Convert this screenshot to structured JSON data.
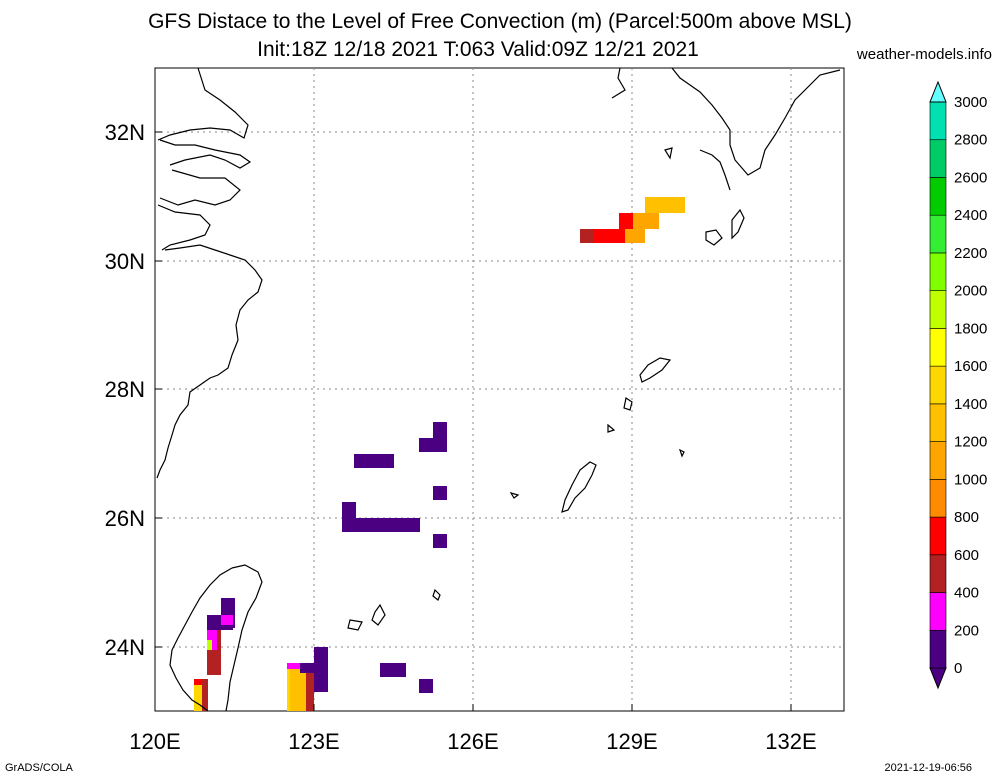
{
  "title_line1": "GFS Distace to the Level of Free Convection (m) (Parcel:500m above MSL)",
  "title_line2": "Init:18Z 12/18 2021 T:063 Valid:09Z 12/21 2021",
  "site": "weather-models.info",
  "footer_left": "GrADS/COLA",
  "footer_right": "2021-12-19-06:56",
  "map": {
    "lon_range": [
      120,
      133
    ],
    "lat_range": [
      23,
      33
    ],
    "lon_ticks": [
      "120E",
      "123E",
      "126E",
      "129E",
      "132E"
    ],
    "lat_ticks": [
      "24N",
      "26N",
      "28N",
      "30N",
      "32N"
    ],
    "grid": true,
    "units": "m"
  },
  "colorbar": {
    "labels": [
      "0",
      "200",
      "400",
      "600",
      "800",
      "1000",
      "1200",
      "1400",
      "1600",
      "1800",
      "2000",
      "2200",
      "2400",
      "2600",
      "2800",
      "3000"
    ],
    "colors": [
      "#4b0082",
      "#ff00ff",
      "#b22222",
      "#ff0000",
      "#ff8c00",
      "#ffa500",
      "#ffc000",
      "#ffd700",
      "#ffff00",
      "#c0ff00",
      "#80ff00",
      "#33ee33",
      "#00cc00",
      "#00cc66",
      "#00e0b0",
      "#00eeee",
      "#66ffff"
    ]
  },
  "fields": [
    {
      "lon": 123.0,
      "lat": 23.2,
      "w": 0.55,
      "h": 0.8,
      "color": "#ffd700"
    },
    {
      "lon": 121.0,
      "lat": 23.2,
      "w": 0.25,
      "h": 0.5,
      "color": "#ffa500"
    },
    {
      "lon": 121.0,
      "lat": 24.2,
      "w": 0.25,
      "h": 0.6,
      "color": "#b22222"
    },
    {
      "lon": 128.4,
      "lat": 30.3,
      "w": 0.9,
      "h": 0.25,
      "color": "#ff0000"
    },
    {
      "lon": 129.3,
      "lat": 30.5,
      "w": 0.6,
      "h": 0.25,
      "color": "#ffa500"
    },
    {
      "lon": 124.5,
      "lat": 26.0,
      "w": 1.4,
      "h": 0.22,
      "color": "#4b0082"
    },
    {
      "lon": 124.5,
      "lat": 26.8,
      "w": 0.7,
      "h": 0.22,
      "color": "#4b0082"
    }
  ]
}
